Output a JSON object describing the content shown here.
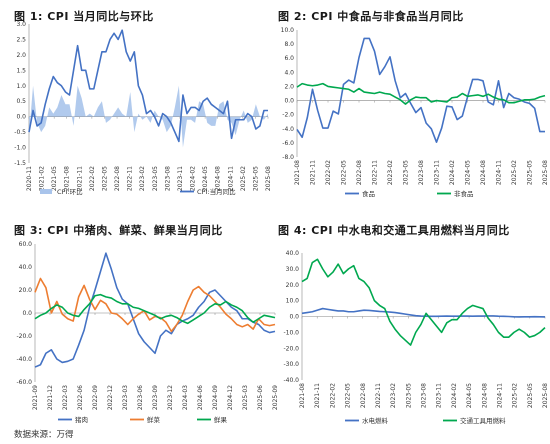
{
  "source": "数据来源：万得",
  "colors": {
    "blue": "#4472c4",
    "green": "#00a84f",
    "orange": "#ed7d31",
    "area": "#a9c4eb",
    "grid": "#dddddd"
  },
  "chart_data": [
    {
      "id": "c1",
      "type": "line",
      "title": "图 1:    CPI 当月同比与环比",
      "ylim": [
        -1.5,
        3.0
      ],
      "yticks": [
        -1.5,
        -1.0,
        -0.5,
        0.0,
        0.5,
        1.0,
        1.5,
        2.0,
        2.5,
        3.0
      ],
      "ytick_labels": [
        "-1.5",
        "-1.0",
        "-0.5",
        "0.0",
        "0.5",
        "1.0",
        "1.5",
        "2.0",
        "2.5",
        "3.0"
      ],
      "xtick_labels": [
        "2020-11",
        "2021-02",
        "2021-05",
        "2021-08",
        "2021-11",
        "2022-02",
        "2022-05",
        "2022-08",
        "2022-11",
        "2023-02",
        "2023-05",
        "2023-08",
        "2023-11",
        "2024-02",
        "2024-05",
        "2024-08",
        "2024-11",
        "2025-02",
        "2025-05",
        "2025-08"
      ],
      "series": [
        {
          "name": "CPI:环比",
          "kind": "area",
          "color": "#a9c4eb",
          "values": [
            -0.6,
            1.0,
            -0.2,
            -0.5,
            -0.3,
            0.3,
            0.1,
            0.3,
            0.7,
            0.4,
            0.4,
            -0.3,
            1.0,
            0.6,
            0.0,
            0.1,
            0.0,
            0.3,
            0.5,
            -0.2,
            -0.1,
            0.1,
            0.3,
            0.1,
            0.0,
            0.8,
            -0.5,
            0.1,
            -0.1,
            0.0,
            -0.2,
            0.2,
            0.0,
            -0.1,
            -0.5,
            -0.3,
            0.3,
            1.0,
            -1.0,
            -0.1,
            -0.1,
            -0.2,
            0.5,
            0.4,
            -0.2,
            -0.3,
            -0.3,
            0.4,
            0.5,
            -0.1,
            -0.2,
            -0.6,
            -0.1,
            0.2,
            -0.2,
            -0.1,
            0.4,
            0.0,
            -0.1,
            0.1
          ]
        },
        {
          "name": "CPI:当月同比",
          "kind": "line",
          "color": "#4472c4",
          "values": [
            -0.5,
            0.2,
            -0.3,
            -0.2,
            0.4,
            0.9,
            1.3,
            1.1,
            1.0,
            0.8,
            0.7,
            1.5,
            2.3,
            1.5,
            1.5,
            0.9,
            0.9,
            1.5,
            2.1,
            2.1,
            2.5,
            2.7,
            2.5,
            2.8,
            2.1,
            1.8,
            2.1,
            1.0,
            0.7,
            0.1,
            0.2,
            0.0,
            -0.3,
            0.1,
            0.0,
            -0.2,
            -0.5,
            -0.8,
            0.7,
            0.1,
            0.3,
            0.3,
            0.2,
            0.5,
            0.6,
            0.4,
            0.3,
            0.2,
            0.1,
            0.5,
            -0.7,
            -0.1,
            -0.1,
            -0.1,
            0.1,
            0.0,
            -0.4,
            -0.3,
            0.2,
            0.2
          ]
        }
      ]
    },
    {
      "id": "c2",
      "type": "line",
      "title": "图 2:    CPI 中食品与非食品当月同比",
      "ylim": [
        -8.0,
        10.0
      ],
      "yticks": [
        -8,
        -6,
        -4,
        -2,
        0,
        2,
        4,
        6,
        8,
        10
      ],
      "ytick_labels": [
        "-8.0",
        "-6.0",
        "-4.0",
        "-2.0",
        "0.0",
        "2.0",
        "4.0",
        "6.0",
        "8.0",
        "10.0"
      ],
      "xtick_labels": [
        "2021-08",
        "2021-11",
        "2022-02",
        "2022-05",
        "2022-08",
        "2022-11",
        "2023-02",
        "2023-05",
        "2023-08",
        "2023-11",
        "2024-02",
        "2024-05",
        "2024-08",
        "2024-11",
        "2025-02",
        "2025-05",
        "2025-08"
      ],
      "series": [
        {
          "name": "食品",
          "color": "#4472c4",
          "values": [
            -4.1,
            -5.2,
            -2.4,
            1.6,
            -1.4,
            -3.9,
            -3.9,
            -1.5,
            -1.9,
            2.3,
            2.9,
            2.5,
            6.1,
            8.8,
            8.8,
            7.0,
            3.7,
            4.8,
            6.2,
            2.8,
            0.4,
            1.0,
            -0.4,
            -1.7,
            -1.0,
            -3.2,
            -4.0,
            -5.9,
            -3.9,
            -0.8,
            -0.9,
            -2.7,
            -2.2,
            0.5,
            3.0,
            3.0,
            2.8,
            -0.2,
            -0.6,
            2.8,
            -1.0,
            1.0,
            0.4,
            0.2,
            -0.2,
            -0.4,
            -1.1,
            -4.4,
            -4.4
          ]
        },
        {
          "name": "非食品",
          "color": "#00a84f",
          "values": [
            1.9,
            2.4,
            2.2,
            2.1,
            2.2,
            2.4,
            2.0,
            1.9,
            1.8,
            1.7,
            1.6,
            1.2,
            1.7,
            1.2,
            1.1,
            1.0,
            1.2,
            1.0,
            0.9,
            0.5,
            0.1,
            -0.5,
            0.1,
            0.5,
            0.4,
            0.4,
            -0.2,
            0.0,
            -0.1,
            -0.2,
            0.4,
            0.5,
            1.0,
            0.6,
            0.7,
            0.8,
            0.6,
            0.9,
            0.5,
            0.2,
            0.1,
            -0.3,
            -0.3,
            -0.1,
            0.1,
            0.1,
            0.2,
            0.5,
            0.7
          ]
        }
      ]
    },
    {
      "id": "c3",
      "type": "line",
      "title": "图 3:  CPI 中猪肉、鲜菜、鲜果当月同比",
      "ylim": [
        -60,
        60
      ],
      "yticks": [
        -60,
        -40,
        -20,
        0,
        20,
        40,
        60
      ],
      "ytick_labels": [
        "-60.0",
        "-40.0",
        "-20.0",
        "0.0",
        "20.0",
        "40.0",
        "60.0"
      ],
      "xtick_labels": [
        "2021-09",
        "2021-12",
        "2022-03",
        "2022-06",
        "2022-09",
        "2022-12",
        "2023-03",
        "2023-06",
        "2023-09",
        "2023-12",
        "2024-03",
        "2024-06",
        "2024-09",
        "2024-12",
        "2025-03",
        "2025-06",
        "2025-09"
      ],
      "series": [
        {
          "name": "猪肉",
          "color": "#4472c4",
          "values": [
            -47,
            -45,
            -35,
            -32,
            -40,
            -43,
            -42,
            -40,
            -28,
            -15,
            5,
            20,
            36,
            52,
            38,
            22,
            12,
            8,
            -5,
            -18,
            -25,
            -30,
            -35,
            -20,
            -15,
            -18,
            -10,
            -7,
            -5,
            -2,
            5,
            10,
            18,
            20,
            15,
            10,
            5,
            2,
            -5,
            -5,
            -8,
            -10,
            -15,
            -17,
            -16
          ]
        },
        {
          "name": "鲜菜",
          "color": "#ed7d31",
          "values": [
            18,
            30,
            22,
            0,
            10,
            -1,
            -5,
            -7,
            14,
            24,
            12,
            3,
            11,
            8,
            0,
            -1,
            -5,
            -10,
            -5,
            -1,
            2,
            -6,
            -3,
            -4,
            -8,
            -16,
            -10,
            -2,
            10,
            20,
            23,
            18,
            15,
            10,
            5,
            -1,
            -5,
            -10,
            -12,
            -10,
            -14,
            -5,
            -10,
            -11,
            -10
          ]
        },
        {
          "name": "鲜果",
          "color": "#00a84f",
          "values": [
            -5,
            -2,
            0,
            4,
            7,
            5,
            0,
            -2,
            -3,
            3,
            8,
            15,
            16,
            14,
            13,
            10,
            8,
            8,
            5,
            4,
            2,
            0,
            -2,
            -5,
            -3,
            -2,
            -4,
            -7,
            -9,
            -6,
            -3,
            0,
            5,
            8,
            7,
            10,
            7,
            5,
            2,
            -4,
            -8,
            -5,
            -2,
            -3,
            -4
          ]
        }
      ]
    },
    {
      "id": "c4",
      "type": "line",
      "title": "图 4:  CPI 中水电和交通工具用燃料当月同比",
      "ylim": [
        -40,
        40
      ],
      "yticks": [
        -40,
        -30,
        -20,
        -10,
        0,
        10,
        20,
        30,
        40
      ],
      "ytick_labels": [
        "-40.0",
        "-30.0",
        "-20.0",
        "-10.0",
        "0.0",
        "10.0",
        "20.0",
        "30.0",
        "40.0"
      ],
      "xtick_labels": [
        "2021-08",
        "2021-11",
        "2022-02",
        "2022-05",
        "2022-08",
        "2022-11",
        "2023-02",
        "2023-05",
        "2023-08",
        "2023-11",
        "2024-02",
        "2024-05",
        "2024-08",
        "2024-11",
        "2025-02",
        "2025-05",
        "2025-08"
      ],
      "series": [
        {
          "name": "水电燃料",
          "color": "#4472c4",
          "values": [
            2.0,
            2.5,
            3.0,
            4.0,
            5.0,
            4.5,
            4.0,
            3.5,
            3.5,
            3.0,
            3.0,
            3.5,
            4.0,
            3.8,
            3.5,
            3.2,
            3.0,
            2.8,
            2.5,
            2.0,
            1.5,
            1.0,
            0.5,
            0.3,
            0.2,
            0.1,
            0.1,
            0.2,
            0.3,
            0.2,
            0.2,
            0.3,
            0.3,
            0.2,
            0.3,
            0.3,
            0.4,
            0.4,
            0.2,
            0.1,
            0.0,
            -0.2,
            -0.3,
            -0.2,
            -0.2,
            -0.1,
            -0.2,
            -0.3
          ]
        },
        {
          "name": "交通工具用燃料",
          "color": "#00a84f",
          "values": [
            22,
            24,
            34,
            36,
            30,
            25,
            28,
            33,
            27,
            30,
            32,
            24,
            22,
            18,
            10,
            7,
            5,
            -3,
            -8,
            -12,
            -15,
            -18,
            -10,
            -5,
            2,
            -2,
            -6,
            -10,
            -4,
            -2,
            -2,
            2,
            5,
            7,
            6,
            5,
            -1,
            -5,
            -10,
            -13,
            -13,
            -10,
            -8,
            -10,
            -13,
            -12,
            -10,
            -7
          ]
        }
      ]
    }
  ]
}
